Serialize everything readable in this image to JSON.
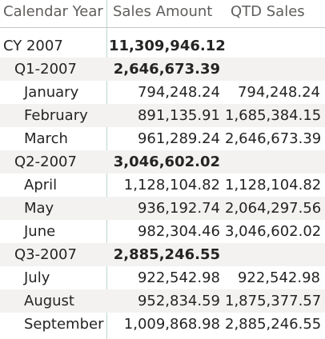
{
  "table": {
    "headers": [
      "Calendar Year",
      "Sales Amount",
      "QTD Sales"
    ],
    "rows": [
      {
        "label": "CY 2007",
        "sales": "11,309,946.12",
        "qtd": "",
        "level": 0
      },
      {
        "label": "Q1-2007",
        "sales": "2,646,673.39",
        "qtd": "",
        "level": 1
      },
      {
        "label": "January",
        "sales": "794,248.24",
        "qtd": "794,248.24",
        "level": 2
      },
      {
        "label": "February",
        "sales": "891,135.91",
        "qtd": "1,685,384.15",
        "level": 2
      },
      {
        "label": "March",
        "sales": "961,289.24",
        "qtd": "2,646,673.39",
        "level": 2
      },
      {
        "label": "Q2-2007",
        "sales": "3,046,602.02",
        "qtd": "",
        "level": 1
      },
      {
        "label": "April",
        "sales": "1,128,104.82",
        "qtd": "1,128,104.82",
        "level": 2
      },
      {
        "label": "May",
        "sales": "936,192.74",
        "qtd": "2,064,297.56",
        "level": 2
      },
      {
        "label": "June",
        "sales": "982,304.46",
        "qtd": "3,046,602.02",
        "level": 2
      },
      {
        "label": "Q3-2007",
        "sales": "2,885,246.55",
        "qtd": "",
        "level": 1
      },
      {
        "label": "July",
        "sales": "922,542.98",
        "qtd": "922,542.98",
        "level": 2
      },
      {
        "label": "August",
        "sales": "952,834.59",
        "qtd": "1,875,377.57",
        "level": 2
      },
      {
        "label": "September",
        "sales": "1,009,868.98",
        "qtd": "2,885,246.55",
        "level": 2
      }
    ]
  }
}
